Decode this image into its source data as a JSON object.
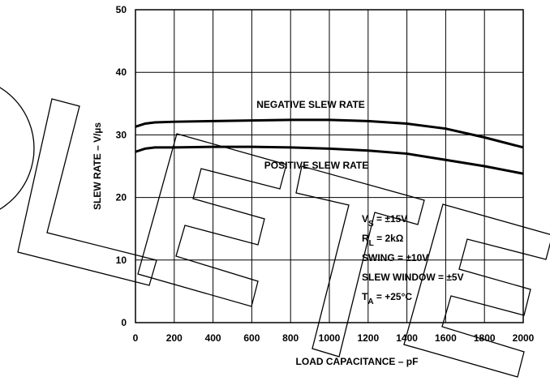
{
  "chart_data": {
    "type": "line",
    "xlabel": "LOAD CAPACITANCE – pF",
    "ylabel": "SLEW RATE – V/µs",
    "x": [
      0,
      50,
      100,
      200,
      400,
      600,
      800,
      1000,
      1200,
      1400,
      1600,
      1800,
      2000
    ],
    "series": [
      {
        "name": "NEGATIVE SLEW RATE",
        "color": "#000000",
        "values": [
          31.3,
          31.8,
          32,
          32.1,
          32.2,
          32.3,
          32.4,
          32.4,
          32.2,
          31.8,
          31,
          29.6,
          28
        ]
      },
      {
        "name": "POSITIVE SLEW RATE",
        "color": "#000000",
        "values": [
          27.3,
          27.8,
          28,
          28,
          28.1,
          28.1,
          28,
          27.8,
          27.5,
          27,
          26,
          25,
          23.8
        ]
      }
    ],
    "conditions": [
      {
        "main": "V",
        "sub": "S",
        "rest": " = ±15V"
      },
      {
        "main": "R",
        "sub": "L",
        "rest": " = 2kΩ"
      },
      {
        "main": "SWING = ±10V"
      },
      {
        "main": "SLEW WINDOW = ±5V"
      },
      {
        "main": "T",
        "sub": "A",
        "rest": " = +25°C"
      }
    ],
    "xlim": [
      0,
      2000
    ],
    "xticks": [
      0,
      200,
      400,
      600,
      800,
      1000,
      1200,
      1400,
      1600,
      1800,
      2000
    ],
    "ylim": [
      0,
      50
    ],
    "yticks": [
      0,
      10,
      20,
      30,
      40,
      50
    ],
    "grid": true
  }
}
